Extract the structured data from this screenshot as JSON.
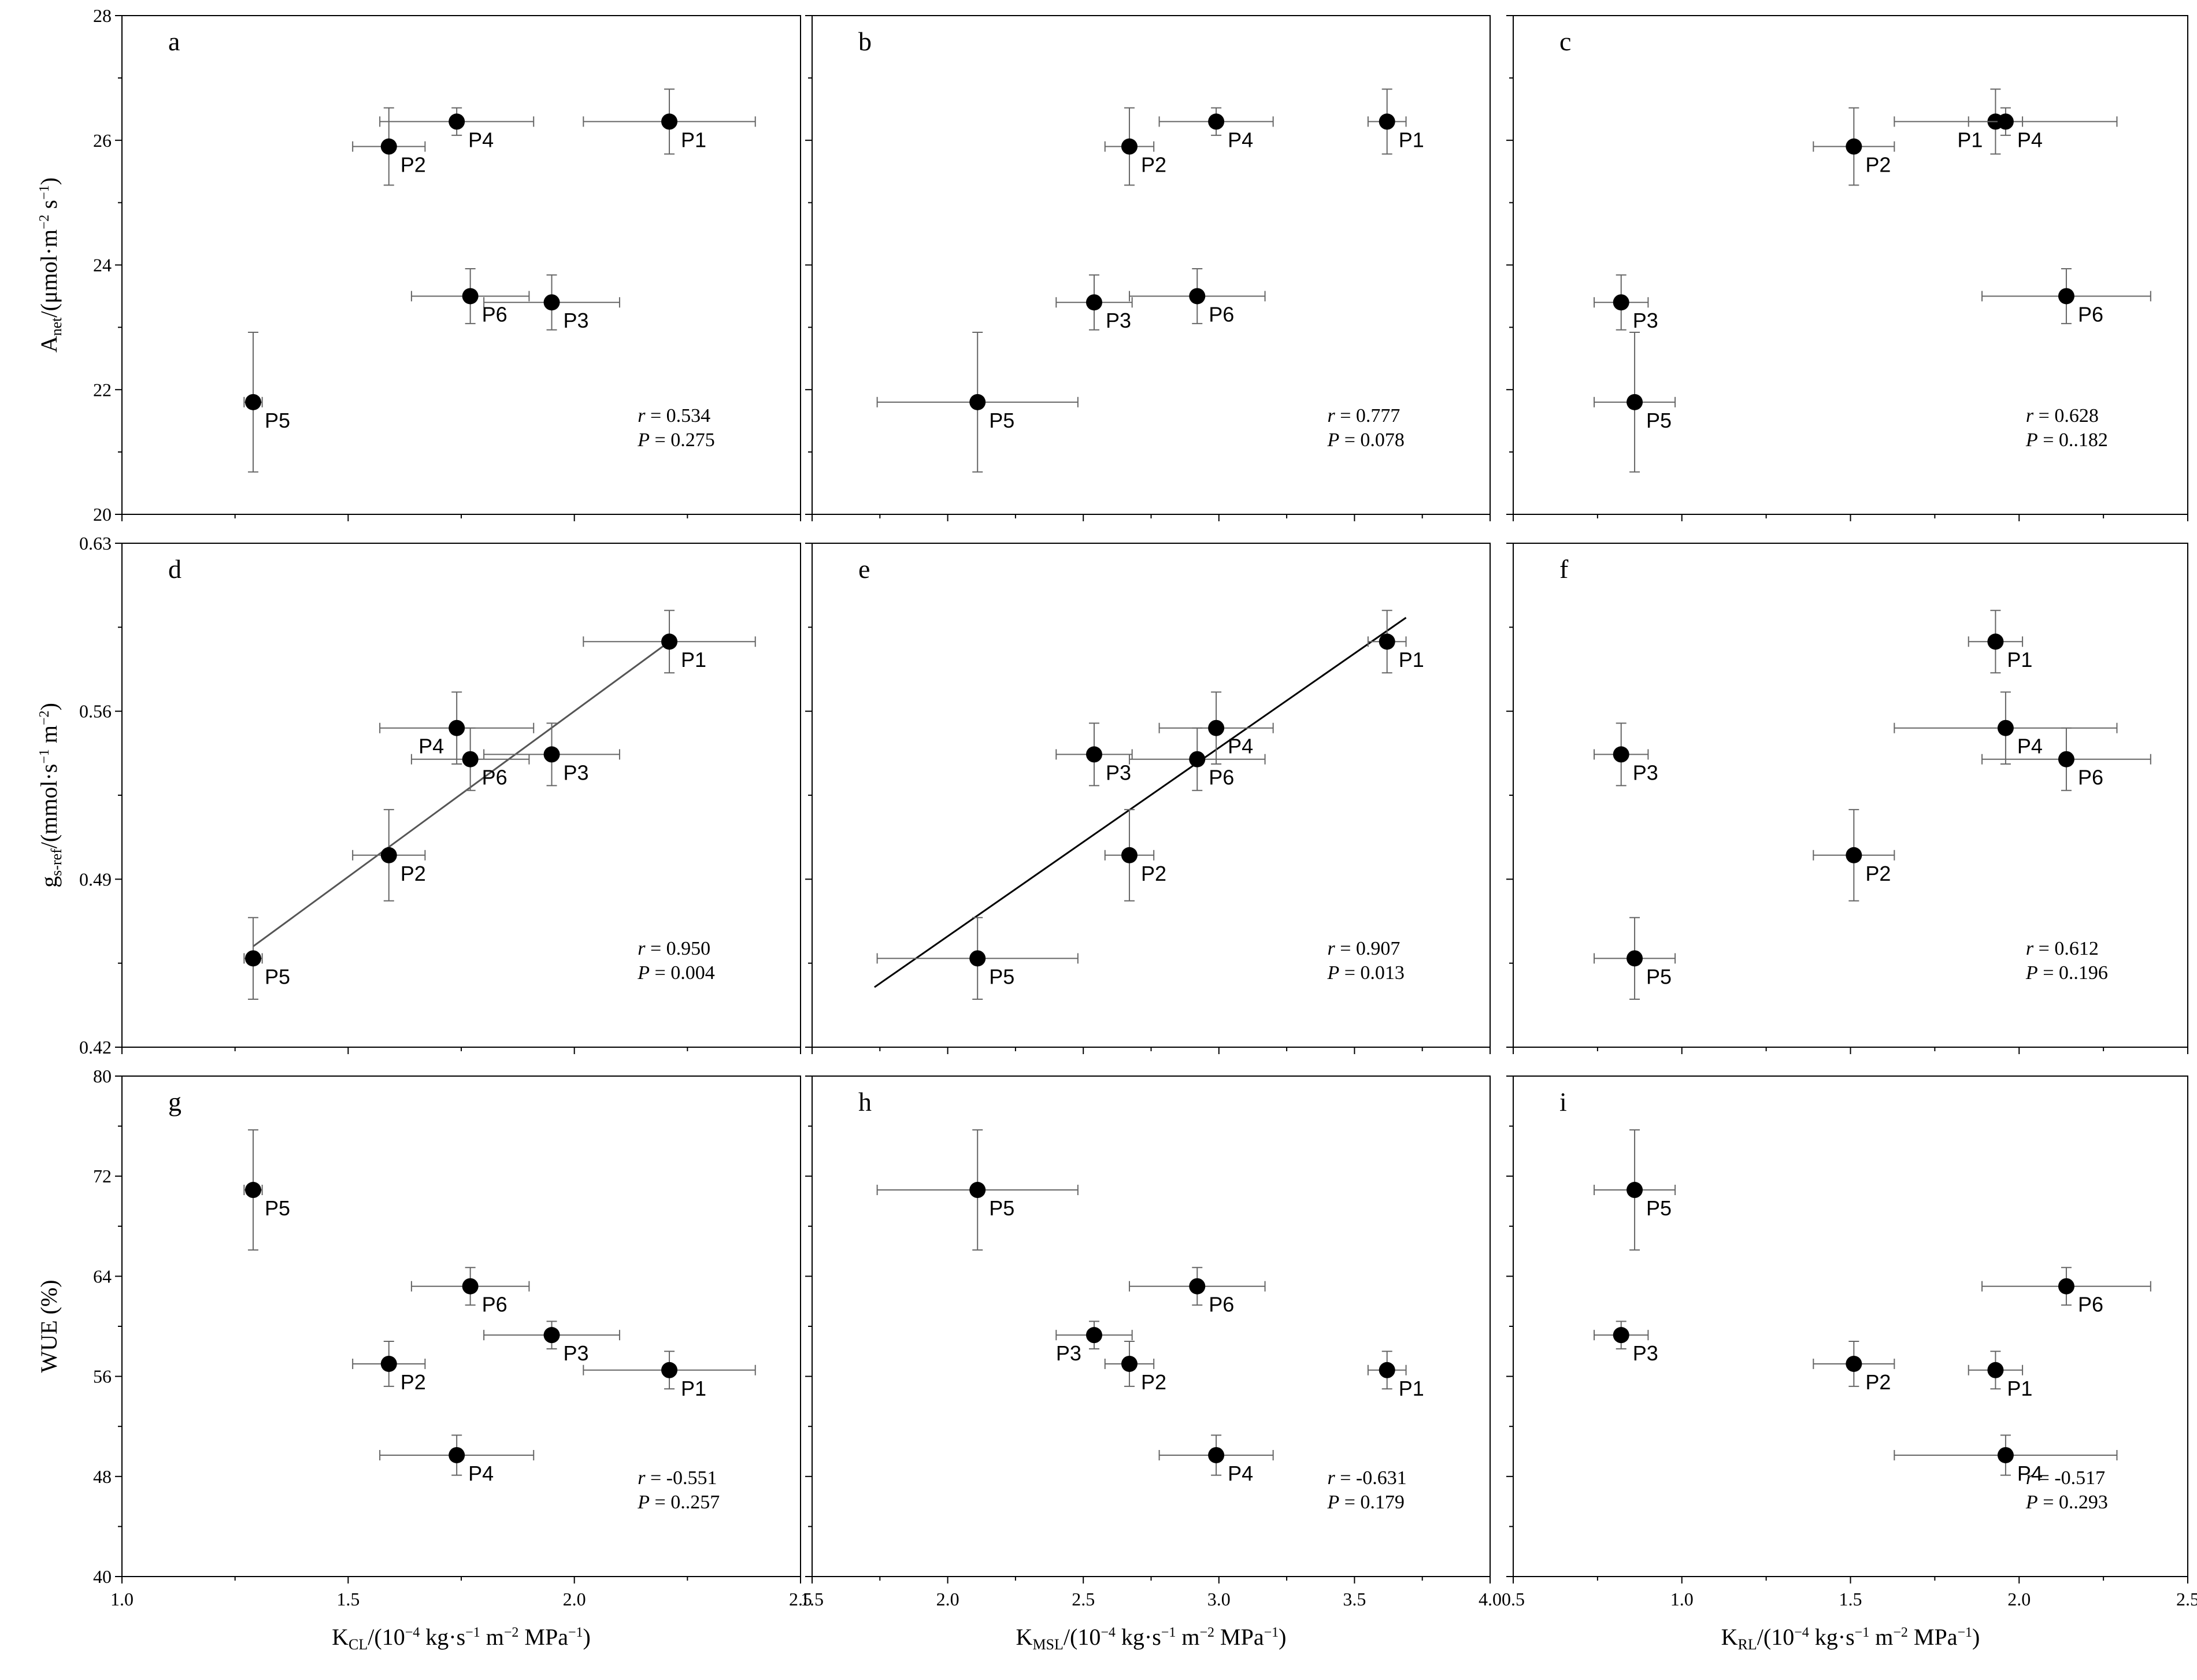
{
  "chart_data": [
    {
      "id": "a",
      "type": "scatter",
      "panel_letter": "a",
      "xlim": [
        1.0,
        2.5
      ],
      "ylim": [
        20,
        28
      ],
      "xticks": [
        "1.0",
        "1.5",
        "2.0",
        "2.5"
      ],
      "yticks": [
        "20",
        "22",
        "24",
        "26",
        "28"
      ],
      "yticklabels_shown": true,
      "xticklabels_shown": false,
      "points": [
        {
          "label": "P1",
          "x": 2.21,
          "y": 26.3,
          "xerr": 0.19,
          "yerr": 0.52
        },
        {
          "label": "P2",
          "x": 1.59,
          "y": 25.9,
          "xerr": 0.08,
          "yerr": 0.62
        },
        {
          "label": "P3",
          "x": 1.95,
          "y": 23.4,
          "xerr": 0.15,
          "yerr": 0.44
        },
        {
          "label": "P4",
          "x": 1.74,
          "y": 26.3,
          "xerr": 0.17,
          "yerr": 0.22
        },
        {
          "label": "P5",
          "x": 1.29,
          "y": 21.8,
          "xerr": 0.02,
          "yerr": 1.12
        },
        {
          "label": "P6",
          "x": 1.77,
          "y": 23.5,
          "xerr": 0.13,
          "yerr": 0.44
        }
      ],
      "stats": {
        "r": "= 0.534",
        "p": "= 0.275"
      },
      "ylabel": {
        "main": "A",
        "sub": "net",
        "rest": "/(μmol·m",
        "sup1": "−2",
        "mid": " s",
        "sup2": "−1",
        "end": ")"
      }
    },
    {
      "id": "b",
      "type": "scatter",
      "panel_letter": "b",
      "xlim": [
        1.5,
        4.0
      ],
      "ylim": [
        20,
        28
      ],
      "xticks": [
        "1.5",
        "2.0",
        "2.5",
        "3.0",
        "3.5",
        "4.0"
      ],
      "yticks": [
        "20",
        "22",
        "24",
        "26",
        "28"
      ],
      "yticklabels_shown": false,
      "xticklabels_shown": false,
      "points": [
        {
          "label": "P1",
          "x": 3.62,
          "y": 26.3,
          "xerr": 0.07,
          "yerr": 0.52
        },
        {
          "label": "P2",
          "x": 2.67,
          "y": 25.9,
          "xerr": 0.09,
          "yerr": 0.62
        },
        {
          "label": "P3",
          "x": 2.54,
          "y": 23.4,
          "xerr": 0.14,
          "yerr": 0.44
        },
        {
          "label": "P4",
          "x": 2.99,
          "y": 26.3,
          "xerr": 0.21,
          "yerr": 0.22
        },
        {
          "label": "P5",
          "x": 2.11,
          "y": 21.8,
          "xerr": 0.37,
          "yerr": 1.12
        },
        {
          "label": "P6",
          "x": 2.92,
          "y": 23.5,
          "xerr": 0.25,
          "yerr": 0.44
        }
      ],
      "stats": {
        "r": "= 0.777",
        "p": "= 0.078"
      }
    },
    {
      "id": "c",
      "type": "scatter",
      "panel_letter": "c",
      "xlim": [
        0.5,
        2.5
      ],
      "ylim": [
        20,
        28
      ],
      "xticks": [
        "0.5",
        "1.0",
        "1.5",
        "2.0",
        "2.5"
      ],
      "yticks": [
        "20",
        "22",
        "24",
        "26",
        "28"
      ],
      "yticklabels_shown": false,
      "xticklabels_shown": false,
      "points": [
        {
          "label": "P1",
          "x": 1.93,
          "y": 26.3,
          "xerr": 0.08,
          "yerr": 0.52,
          "label_side": "left"
        },
        {
          "label": "P2",
          "x": 1.51,
          "y": 25.9,
          "xerr": 0.12,
          "yerr": 0.62
        },
        {
          "label": "P3",
          "x": 0.82,
          "y": 23.4,
          "xerr": 0.08,
          "yerr": 0.44
        },
        {
          "label": "P4",
          "x": 1.96,
          "y": 26.3,
          "xerr": 0.33,
          "yerr": 0.22
        },
        {
          "label": "P5",
          "x": 0.86,
          "y": 21.8,
          "xerr": 0.12,
          "yerr": 1.12
        },
        {
          "label": "P6",
          "x": 2.14,
          "y": 23.5,
          "xerr": 0.25,
          "yerr": 0.44
        }
      ],
      "stats": {
        "r": "= 0.628",
        "p": "= 0..182"
      }
    },
    {
      "id": "d",
      "type": "scatter",
      "panel_letter": "d",
      "xlim": [
        1.0,
        2.5
      ],
      "ylim": [
        0.42,
        0.63
      ],
      "xticks": [
        "1.0",
        "1.5",
        "2.0",
        "2.5"
      ],
      "yticks": [
        "0.42",
        "0.49",
        "0.56",
        "0.63"
      ],
      "yticklabels_shown": true,
      "xticklabels_shown": false,
      "points": [
        {
          "label": "P1",
          "x": 2.21,
          "y": 0.589,
          "xerr": 0.19,
          "yerr": 0.013
        },
        {
          "label": "P2",
          "x": 1.59,
          "y": 0.5,
          "xerr": 0.08,
          "yerr": 0.019
        },
        {
          "label": "P3",
          "x": 1.95,
          "y": 0.542,
          "xerr": 0.15,
          "yerr": 0.013
        },
        {
          "label": "P4",
          "x": 1.74,
          "y": 0.553,
          "xerr": 0.17,
          "yerr": 0.015,
          "label_side": "left"
        },
        {
          "label": "P5",
          "x": 1.29,
          "y": 0.457,
          "xerr": 0.02,
          "yerr": 0.017
        },
        {
          "label": "P6",
          "x": 1.77,
          "y": 0.54,
          "xerr": 0.13,
          "yerr": 0.013
        }
      ],
      "fit": {
        "x1": 1.29,
        "y1": 0.462,
        "x2": 2.21,
        "y2": 0.589,
        "color": "#555555"
      },
      "stats": {
        "r": "= 0.950",
        "p": "= 0.004"
      },
      "ylabel": {
        "main": "g",
        "sub": "s-ref",
        "rest": "/(mmol·s",
        "sup1": "−1",
        "mid": " m",
        "sup2": "−2",
        "end": ")"
      }
    },
    {
      "id": "e",
      "type": "scatter",
      "panel_letter": "e",
      "xlim": [
        1.5,
        4.0
      ],
      "ylim": [
        0.42,
        0.63
      ],
      "xticks": [
        "1.5",
        "2.0",
        "2.5",
        "3.0",
        "3.5",
        "4.0"
      ],
      "yticks": [
        "0.42",
        "0.49",
        "0.56",
        "0.63"
      ],
      "yticklabels_shown": false,
      "xticklabels_shown": false,
      "points": [
        {
          "label": "P1",
          "x": 3.62,
          "y": 0.589,
          "xerr": 0.07,
          "yerr": 0.013
        },
        {
          "label": "P2",
          "x": 2.67,
          "y": 0.5,
          "xerr": 0.09,
          "yerr": 0.019
        },
        {
          "label": "P3",
          "x": 2.54,
          "y": 0.542,
          "xerr": 0.14,
          "yerr": 0.013
        },
        {
          "label": "P4",
          "x": 2.99,
          "y": 0.553,
          "xerr": 0.21,
          "yerr": 0.015
        },
        {
          "label": "P5",
          "x": 2.11,
          "y": 0.457,
          "xerr": 0.37,
          "yerr": 0.017
        },
        {
          "label": "P6",
          "x": 2.92,
          "y": 0.54,
          "xerr": 0.25,
          "yerr": 0.013
        }
      ],
      "fit": {
        "x1": 1.73,
        "y1": 0.445,
        "x2": 3.69,
        "y2": 0.599,
        "color": "#000000"
      },
      "stats": {
        "r": "= 0.907",
        "p": "= 0.013"
      }
    },
    {
      "id": "f",
      "type": "scatter",
      "panel_letter": "f",
      "xlim": [
        0.5,
        2.5
      ],
      "ylim": [
        0.42,
        0.63
      ],
      "xticks": [
        "0.5",
        "1.0",
        "1.5",
        "2.0",
        "2.5"
      ],
      "yticks": [
        "0.42",
        "0.49",
        "0.56",
        "0.63"
      ],
      "yticklabels_shown": false,
      "xticklabels_shown": false,
      "points": [
        {
          "label": "P1",
          "x": 1.93,
          "y": 0.589,
          "xerr": 0.08,
          "yerr": 0.013
        },
        {
          "label": "P2",
          "x": 1.51,
          "y": 0.5,
          "xerr": 0.12,
          "yerr": 0.019
        },
        {
          "label": "P3",
          "x": 0.82,
          "y": 0.542,
          "xerr": 0.08,
          "yerr": 0.013
        },
        {
          "label": "P4",
          "x": 1.96,
          "y": 0.553,
          "xerr": 0.33,
          "yerr": 0.015
        },
        {
          "label": "P5",
          "x": 0.86,
          "y": 0.457,
          "xerr": 0.12,
          "yerr": 0.017
        },
        {
          "label": "P6",
          "x": 2.14,
          "y": 0.54,
          "xerr": 0.25,
          "yerr": 0.013
        }
      ],
      "stats": {
        "r": "= 0.612",
        "p": "= 0..196"
      }
    },
    {
      "id": "g",
      "type": "scatter",
      "panel_letter": "g",
      "xlim": [
        1.0,
        2.5
      ],
      "ylim": [
        40,
        80
      ],
      "xticks": [
        "1.0",
        "1.5",
        "2.0",
        "2.5"
      ],
      "yticks": [
        "40",
        "48",
        "56",
        "64",
        "72",
        "80"
      ],
      "yticklabels_shown": true,
      "xticklabels_shown": true,
      "points": [
        {
          "label": "P1",
          "x": 2.21,
          "y": 56.5,
          "xerr": 0.19,
          "yerr": 1.5
        },
        {
          "label": "P2",
          "x": 1.59,
          "y": 57.0,
          "xerr": 0.08,
          "yerr": 1.8
        },
        {
          "label": "P3",
          "x": 1.95,
          "y": 59.3,
          "xerr": 0.15,
          "yerr": 1.1
        },
        {
          "label": "P4",
          "x": 1.74,
          "y": 49.7,
          "xerr": 0.17,
          "yerr": 1.6
        },
        {
          "label": "P5",
          "x": 1.29,
          "y": 70.9,
          "xerr": 0.02,
          "yerr": 4.8
        },
        {
          "label": "P6",
          "x": 1.77,
          "y": 63.2,
          "xerr": 0.13,
          "yerr": 1.5
        }
      ],
      "stats": {
        "r": "= -0.551",
        "p": "= 0..257"
      },
      "ylabel": {
        "main": "WUE (%)"
      },
      "xlabel": {
        "main": "K",
        "sub": "CL",
        "rest": "/(10",
        "sup1": "−4",
        "mid": " kg·s",
        "sup2": "−1",
        "mid2": " m",
        "sup3": "−2",
        "end": " MPa",
        "sup4": "−1",
        "close": ")"
      }
    },
    {
      "id": "h",
      "type": "scatter",
      "panel_letter": "h",
      "xlim": [
        1.5,
        4.0
      ],
      "ylim": [
        40,
        80
      ],
      "xticks": [
        "1.5",
        "2.0",
        "2.5",
        "3.0",
        "3.5",
        "4.0"
      ],
      "yticks": [
        "40",
        "48",
        "56",
        "64",
        "72",
        "80"
      ],
      "yticklabels_shown": false,
      "xticklabels_shown": true,
      "points": [
        {
          "label": "P1",
          "x": 3.62,
          "y": 56.5,
          "xerr": 0.07,
          "yerr": 1.5
        },
        {
          "label": "P2",
          "x": 2.67,
          "y": 57.0,
          "xerr": 0.09,
          "yerr": 1.8
        },
        {
          "label": "P3",
          "x": 2.54,
          "y": 59.3,
          "xerr": 0.14,
          "yerr": 1.1,
          "label_side": "left"
        },
        {
          "label": "P4",
          "x": 2.99,
          "y": 49.7,
          "xerr": 0.21,
          "yerr": 1.6
        },
        {
          "label": "P5",
          "x": 2.11,
          "y": 70.9,
          "xerr": 0.37,
          "yerr": 4.8
        },
        {
          "label": "P6",
          "x": 2.92,
          "y": 63.2,
          "xerr": 0.25,
          "yerr": 1.5
        }
      ],
      "stats": {
        "r": "= -0.631",
        "p": "= 0.179"
      },
      "xlabel": {
        "main": "K",
        "sub": "MSL",
        "rest": "/(10",
        "sup1": "−4",
        "mid": " kg·s",
        "sup2": "−1",
        "mid2": " m",
        "sup3": "−2",
        "end": " MPa",
        "sup4": "−1",
        "close": ")"
      }
    },
    {
      "id": "i",
      "type": "scatter",
      "panel_letter": "i",
      "xlim": [
        0.5,
        2.5
      ],
      "ylim": [
        40,
        80
      ],
      "xticks": [
        "0.5",
        "1.0",
        "1.5",
        "2.0",
        "2.5"
      ],
      "yticks": [
        "40",
        "48",
        "56",
        "64",
        "72",
        "80"
      ],
      "yticklabels_shown": false,
      "xticklabels_shown": true,
      "points": [
        {
          "label": "P1",
          "x": 1.93,
          "y": 56.5,
          "xerr": 0.08,
          "yerr": 1.5
        },
        {
          "label": "P2",
          "x": 1.51,
          "y": 57.0,
          "xerr": 0.12,
          "yerr": 1.8
        },
        {
          "label": "P3",
          "x": 0.82,
          "y": 59.3,
          "xerr": 0.08,
          "yerr": 1.1
        },
        {
          "label": "P4",
          "x": 1.96,
          "y": 49.7,
          "xerr": 0.33,
          "yerr": 1.6
        },
        {
          "label": "P5",
          "x": 0.86,
          "y": 70.9,
          "xerr": 0.12,
          "yerr": 4.8
        },
        {
          "label": "P6",
          "x": 2.14,
          "y": 63.2,
          "xerr": 0.25,
          "yerr": 1.5
        }
      ],
      "stats": {
        "r": "= -0.517",
        "p": "= 0..293"
      },
      "xlabel": {
        "main": "K",
        "sub": "RL",
        "rest": "/(10",
        "sup1": "−4",
        "mid": " kg·s",
        "sup2": "−1",
        "mid2": " m",
        "sup3": "−2",
        "end": " MPa",
        "sup4": "−1",
        "close": ")"
      }
    }
  ],
  "stat_labels": {
    "r": "r",
    "p": "P"
  }
}
